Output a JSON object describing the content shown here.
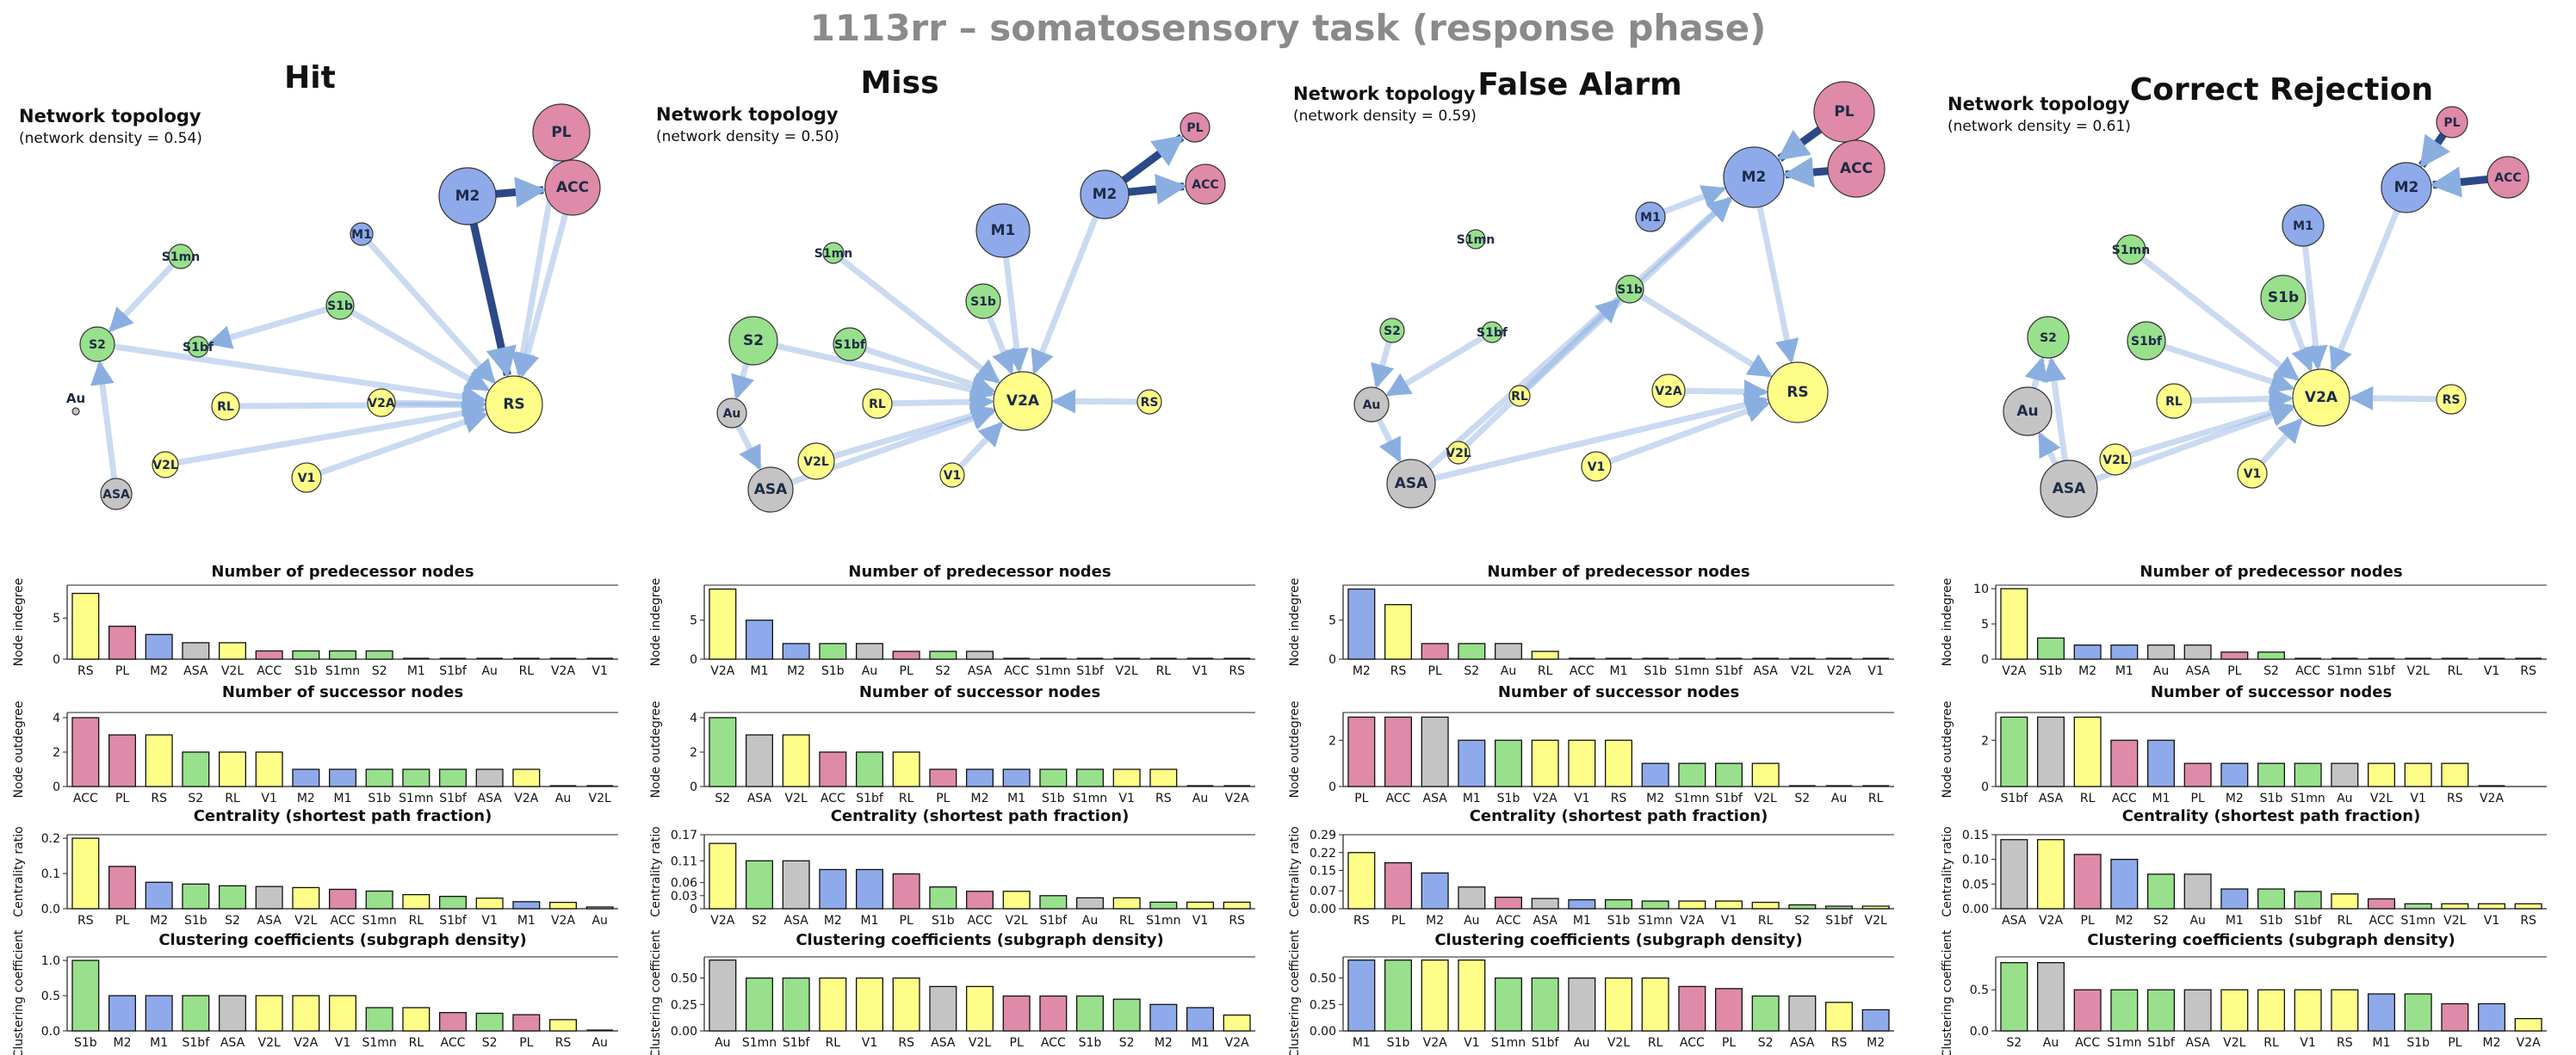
{
  "title": "1113rr – somatosensory task (response phase)",
  "colors": {
    "sensory": "#98e08c",
    "motor": "#8eaaea",
    "visual": "#fdfd88",
    "prefrontal": "#de8aa8",
    "other": "#c4c4c4",
    "edge": "#1f3f80",
    "bar_stroke": "#111111"
  },
  "node_groups": {
    "PL": "prefrontal",
    "ACC": "prefrontal",
    "M1": "motor",
    "M2": "motor",
    "S1mn": "sensory",
    "S1b": "sensory",
    "S1bf": "sensory",
    "S2": "sensory",
    "RS": "visual",
    "V2A": "visual",
    "RL": "visual",
    "V2L": "visual",
    "V1": "visual",
    "Au": "other",
    "ASA": "other"
  },
  "labels": {
    "topology": "Network topology",
    "metric_titles": [
      "Number of predecessor nodes",
      "Number of successor nodes",
      "Centrality (shortest path fraction)",
      "Clustering coefficients (subgraph density)"
    ],
    "metric_ylabels": [
      "Node indegree",
      "Node outdegree",
      "Centrality ratio",
      "Clustering coefficient"
    ]
  },
  "chart_data": [
    {
      "type": "network",
      "title": "Hit",
      "density_label": "(network density = 0.54)",
      "nodes": [
        "PL",
        "ACC",
        "M2",
        "M1",
        "S1mn",
        "S1b",
        "S1bf",
        "S2",
        "Au",
        "RL",
        "V2A",
        "RS",
        "V2L",
        "V1",
        "ASA"
      ],
      "edges": [
        [
          "M2",
          "ACC"
        ],
        [
          "M2",
          "RS"
        ],
        [
          "PL",
          "RS"
        ],
        [
          "ACC",
          "RS"
        ],
        [
          "M1",
          "RS"
        ],
        [
          "S1b",
          "RS"
        ],
        [
          "V2A",
          "RS"
        ],
        [
          "V2L",
          "RS"
        ],
        [
          "V1",
          "RS"
        ],
        [
          "RL",
          "RS"
        ],
        [
          "S1mn",
          "S2"
        ],
        [
          "S2",
          "RS"
        ],
        [
          "ASA",
          "S2"
        ],
        [
          "S1b",
          "S1bf"
        ]
      ]
    },
    {
      "type": "network",
      "title": "Miss",
      "density_label": "(network density = 0.50)",
      "nodes": [
        "PL",
        "ACC",
        "M2",
        "M1",
        "S1mn",
        "S1b",
        "S1bf",
        "S2",
        "Au",
        "RL",
        "V2A",
        "RS",
        "V2L",
        "V1",
        "ASA"
      ],
      "edges": [
        [
          "M2",
          "ACC"
        ],
        [
          "M2",
          "PL"
        ],
        [
          "M2",
          "V2A"
        ],
        [
          "M1",
          "V2A"
        ],
        [
          "S1b",
          "V2A"
        ],
        [
          "S1bf",
          "V2A"
        ],
        [
          "S1mn",
          "V2A"
        ],
        [
          "RL",
          "V2A"
        ],
        [
          "RS",
          "V2A"
        ],
        [
          "V1",
          "V2A"
        ],
        [
          "V2L",
          "V2A"
        ],
        [
          "S2",
          "Au"
        ],
        [
          "Au",
          "ASA"
        ],
        [
          "ASA",
          "V2A"
        ],
        [
          "S2",
          "V2A"
        ]
      ]
    },
    {
      "type": "network",
      "title": "False Alarm",
      "density_label": "(network density = 0.59)",
      "nodes": [
        "PL",
        "ACC",
        "M2",
        "M1",
        "S1mn",
        "S1b",
        "S1bf",
        "S2",
        "Au",
        "RL",
        "V2A",
        "RS",
        "V2L",
        "V1",
        "ASA"
      ],
      "edges": [
        [
          "ACC",
          "M2"
        ],
        [
          "PL",
          "M2"
        ],
        [
          "M2",
          "RS"
        ],
        [
          "M1",
          "M2"
        ],
        [
          "S1b",
          "RS"
        ],
        [
          "V2A",
          "RS"
        ],
        [
          "V1",
          "RS"
        ],
        [
          "ASA",
          "M2"
        ],
        [
          "ASA",
          "RS"
        ],
        [
          "Au",
          "ASA"
        ],
        [
          "V2L",
          "S1b"
        ],
        [
          "RL",
          "M2"
        ],
        [
          "S1bf",
          "Au"
        ],
        [
          "S2",
          "Au"
        ]
      ]
    },
    {
      "type": "network",
      "title": "Correct Rejection",
      "density_label": "(network density = 0.61)",
      "nodes": [
        "PL",
        "ACC",
        "M2",
        "M1",
        "S1mn",
        "S1b",
        "S1bf",
        "S2",
        "Au",
        "RL",
        "V2A",
        "RS",
        "V2L",
        "V1",
        "ASA"
      ],
      "edges": [
        [
          "ACC",
          "M2"
        ],
        [
          "PL",
          "M2"
        ],
        [
          "M2",
          "V2A"
        ],
        [
          "M1",
          "V2A"
        ],
        [
          "S1mn",
          "V2A"
        ],
        [
          "S1b",
          "V2A"
        ],
        [
          "S1bf",
          "V2A"
        ],
        [
          "RL",
          "V2A"
        ],
        [
          "RS",
          "V2A"
        ],
        [
          "V2L",
          "V2A"
        ],
        [
          "V1",
          "V2A"
        ],
        [
          "ASA",
          "V2A"
        ],
        [
          "ASA",
          "Au"
        ],
        [
          "Au",
          "S2"
        ],
        [
          "ASA",
          "S2"
        ]
      ]
    },
    {
      "type": "bar",
      "panel": "Hit",
      "metric": "Number of predecessor nodes",
      "ylabel": "Node indegree",
      "categories": [
        "RS",
        "PL",
        "M2",
        "ASA",
        "V2L",
        "ACC",
        "S1b",
        "S1mn",
        "S2",
        "M1",
        "S1bf",
        "Au",
        "RL",
        "V2A",
        "V1"
      ],
      "values": [
        8,
        4,
        3,
        2,
        2,
        1,
        1,
        1,
        1,
        0,
        0,
        0,
        0,
        0,
        0
      ],
      "yticks": [
        0,
        5
      ],
      "ylim": [
        0,
        9
      ]
    },
    {
      "type": "bar",
      "panel": "Hit",
      "metric": "Number of successor nodes",
      "ylabel": "Node outdegree",
      "categories": [
        "ACC",
        "PL",
        "RS",
        "S2",
        "RL",
        "V1",
        "M2",
        "M1",
        "S1b",
        "S1mn",
        "S1bf",
        "ASA",
        "V2A",
        "Au",
        "V2L"
      ],
      "values": [
        4,
        3,
        3,
        2,
        2,
        2,
        1,
        1,
        1,
        1,
        1,
        1,
        1,
        0,
        0
      ],
      "yticks": [
        0,
        2,
        4
      ],
      "ylim": [
        0,
        4.3
      ]
    },
    {
      "type": "bar",
      "panel": "Hit",
      "metric": "Centrality (shortest path fraction)",
      "ylabel": "Centrality ratio",
      "categories": [
        "RS",
        "PL",
        "M2",
        "S1b",
        "S2",
        "ASA",
        "V2L",
        "ACC",
        "S1mn",
        "RL",
        "S1bf",
        "V1",
        "M1",
        "V2A",
        "Au"
      ],
      "values": [
        0.2,
        0.12,
        0.075,
        0.07,
        0.065,
        0.063,
        0.06,
        0.055,
        0.05,
        0.04,
        0.035,
        0.03,
        0.02,
        0.018,
        0.005
      ],
      "yticks": [
        0,
        0.1,
        0.2
      ],
      "ytick_labels": [
        "0.0",
        "0.1",
        "0.2"
      ],
      "ylim": [
        0,
        0.21
      ]
    },
    {
      "type": "bar",
      "panel": "Hit",
      "metric": "Clustering coefficients (subgraph density)",
      "ylabel": "Clustering coefficient",
      "categories": [
        "S1b",
        "M2",
        "M1",
        "S1bf",
        "ASA",
        "V2L",
        "V2A",
        "V1",
        "S1mn",
        "RL",
        "ACC",
        "S2",
        "PL",
        "RS",
        "Au"
      ],
      "values": [
        1.0,
        0.5,
        0.5,
        0.5,
        0.5,
        0.5,
        0.5,
        0.5,
        0.33,
        0.33,
        0.26,
        0.25,
        0.23,
        0.16,
        0.0
      ],
      "yticks": [
        0,
        0.5,
        1.0
      ],
      "ytick_labels": [
        "0.0",
        "0.5",
        "1.0"
      ],
      "ylim": [
        0,
        1.05
      ]
    },
    {
      "type": "bar",
      "panel": "Miss",
      "metric": "Number of predecessor nodes",
      "ylabel": "Node indegree",
      "categories": [
        "V2A",
        "M1",
        "M2",
        "S1b",
        "Au",
        "PL",
        "S2",
        "ASA",
        "ACC",
        "S1mn",
        "S1bf",
        "V2L",
        "RL",
        "V1",
        "RS"
      ],
      "values": [
        9,
        5,
        2,
        2,
        2,
        1,
        1,
        1,
        0,
        0,
        0,
        0,
        0,
        0,
        0
      ],
      "yticks": [
        0,
        5
      ],
      "ylim": [
        0,
        9.5
      ]
    },
    {
      "type": "bar",
      "panel": "Miss",
      "metric": "Number of successor nodes",
      "ylabel": "Node outdegree",
      "categories": [
        "S2",
        "ASA",
        "V2L",
        "ACC",
        "S1bf",
        "RL",
        "PL",
        "M2",
        "M1",
        "S1b",
        "S1mn",
        "V1",
        "RS",
        "Au",
        "V2A"
      ],
      "values": [
        4,
        3,
        3,
        2,
        2,
        2,
        1,
        1,
        1,
        1,
        1,
        1,
        1,
        0,
        0
      ],
      "yticks": [
        0,
        2,
        4
      ],
      "ylim": [
        0,
        4.3
      ]
    },
    {
      "type": "bar",
      "panel": "Miss",
      "metric": "Centrality (shortest path fraction)",
      "ylabel": "Centrality ratio",
      "categories": [
        "V2A",
        "S2",
        "ASA",
        "M2",
        "M1",
        "PL",
        "S1b",
        "ACC",
        "V2L",
        "S1bf",
        "Au",
        "RL",
        "S1mn",
        "V1",
        "RS"
      ],
      "values": [
        0.15,
        0.11,
        0.11,
        0.09,
        0.09,
        0.08,
        0.05,
        0.04,
        0.04,
        0.03,
        0.025,
        0.025,
        0.015,
        0.015,
        0.015
      ],
      "yticks": [
        0,
        0.03,
        0.06,
        0.11,
        0.17
      ],
      "ytick_labels": [
        "0",
        "0.03",
        "0.06",
        "0.11",
        "0.17"
      ],
      "ylim": [
        0,
        0.17
      ]
    },
    {
      "type": "bar",
      "panel": "Miss",
      "metric": "Clustering coefficients (subgraph density)",
      "ylabel": "Clustering coefficient",
      "categories": [
        "Au",
        "S1mn",
        "S1bf",
        "RL",
        "V1",
        "RS",
        "ASA",
        "V2L",
        "PL",
        "ACC",
        "S1b",
        "S2",
        "M2",
        "M1",
        "V2A"
      ],
      "values": [
        0.67,
        0.5,
        0.5,
        0.5,
        0.5,
        0.5,
        0.42,
        0.42,
        0.33,
        0.33,
        0.33,
        0.3,
        0.25,
        0.22,
        0.15
      ],
      "yticks": [
        0,
        0.25,
        0.5
      ],
      "ytick_labels": [
        "0.00",
        "0.25",
        "0.50"
      ],
      "ylim": [
        0,
        0.7
      ]
    },
    {
      "type": "bar",
      "panel": "False Alarm",
      "metric": "Number of predecessor nodes",
      "ylabel": "Node indegree",
      "categories": [
        "M2",
        "RS",
        "PL",
        "S2",
        "Au",
        "RL",
        "ACC",
        "M1",
        "S1b",
        "S1mn",
        "S1bf",
        "ASA",
        "V2L",
        "V2A",
        "V1"
      ],
      "values": [
        9,
        7,
        2,
        2,
        2,
        1,
        0,
        0,
        0,
        0,
        0,
        0,
        0,
        0,
        0
      ],
      "yticks": [
        0,
        5
      ],
      "ylim": [
        0,
        9.5
      ]
    },
    {
      "type": "bar",
      "panel": "False Alarm",
      "metric": "Number of successor nodes",
      "ylabel": "Node outdegree",
      "categories": [
        "PL",
        "ACC",
        "ASA",
        "M1",
        "S1b",
        "V2A",
        "V1",
        "RS",
        "M2",
        "S1mn",
        "S1bf",
        "V2L",
        "S2",
        "Au",
        "RL"
      ],
      "values": [
        3,
        3,
        3,
        2,
        2,
        2,
        2,
        2,
        1,
        1,
        1,
        1,
        0,
        0,
        0
      ],
      "yticks": [
        0,
        2
      ],
      "ylim": [
        0,
        3.2
      ]
    },
    {
      "type": "bar",
      "panel": "False Alarm",
      "metric": "Centrality (shortest path fraction)",
      "ylabel": "Centrality ratio",
      "categories": [
        "RS",
        "PL",
        "M2",
        "Au",
        "ACC",
        "ASA",
        "M1",
        "S1b",
        "S1mn",
        "V2A",
        "V1",
        "RL",
        "S2",
        "S1bf",
        "V2L"
      ],
      "values": [
        0.22,
        0.18,
        0.14,
        0.085,
        0.045,
        0.04,
        0.035,
        0.035,
        0.03,
        0.03,
        0.03,
        0.025,
        0.015,
        0.01,
        0.01
      ],
      "yticks": [
        0,
        0.07,
        0.15,
        0.22,
        0.29
      ],
      "ytick_labels": [
        "0.00",
        "0.07",
        "0.15",
        "0.22",
        "0.29"
      ],
      "ylim": [
        0,
        0.29
      ]
    },
    {
      "type": "bar",
      "panel": "False Alarm",
      "metric": "Clustering coefficients (subgraph density)",
      "ylabel": "Clustering coefficient",
      "categories": [
        "M1",
        "S1b",
        "V2A",
        "V1",
        "S1mn",
        "S1bf",
        "Au",
        "V2L",
        "RL",
        "ACC",
        "PL",
        "S2",
        "ASA",
        "RS",
        "M2"
      ],
      "values": [
        0.67,
        0.67,
        0.67,
        0.67,
        0.5,
        0.5,
        0.5,
        0.5,
        0.5,
        0.42,
        0.4,
        0.33,
        0.33,
        0.27,
        0.2
      ],
      "yticks": [
        0,
        0.25,
        0.5
      ],
      "ytick_labels": [
        "0.00",
        "0.25",
        "0.50"
      ],
      "ylim": [
        0,
        0.7
      ]
    },
    {
      "type": "bar",
      "panel": "Correct Rejection",
      "metric": "Number of predecessor nodes",
      "ylabel": "Node indegree",
      "categories": [
        "V2A",
        "S1b",
        "M2",
        "M1",
        "Au",
        "ASA",
        "PL",
        "S2",
        "ACC",
        "S1mn",
        "S1bf",
        "V2L",
        "RL",
        "V1",
        "RS"
      ],
      "values": [
        10,
        3,
        2,
        2,
        2,
        2,
        1,
        1,
        0,
        0,
        0,
        0,
        0,
        0,
        0
      ],
      "yticks": [
        0,
        5,
        10
      ],
      "ylim": [
        0,
        10.5
      ]
    },
    {
      "type": "bar",
      "panel": "Correct Rejection",
      "metric": "Number of successor nodes",
      "ylabel": "Node outdegree",
      "categories": [
        "S1bf",
        "ASA",
        "RL",
        "ACC",
        "M1",
        "PL",
        "M2",
        "S1b",
        "S1mn",
        "Au",
        "V2L",
        "V1",
        "RS",
        "V2A"
      ],
      "values": [
        3,
        3,
        3,
        2,
        2,
        1,
        1,
        1,
        1,
        1,
        1,
        1,
        1,
        0
      ],
      "yticks": [
        0,
        2
      ],
      "ylim": [
        0,
        3.2
      ]
    },
    {
      "type": "bar",
      "panel": "Correct Rejection",
      "metric": "Centrality (shortest path fraction)",
      "ylabel": "Centrality ratio",
      "categories": [
        "ASA",
        "V2A",
        "PL",
        "M2",
        "S2",
        "Au",
        "M1",
        "S1b",
        "S1bf",
        "RL",
        "ACC",
        "S1mn",
        "V2L",
        "V1",
        "RS"
      ],
      "values": [
        0.14,
        0.14,
        0.11,
        0.1,
        0.07,
        0.07,
        0.04,
        0.04,
        0.035,
        0.03,
        0.02,
        0.01,
        0.01,
        0.01,
        0.01
      ],
      "yticks": [
        0,
        0.05,
        0.1,
        0.15
      ],
      "ytick_labels": [
        "0.00",
        "0.05",
        "0.10",
        "0.15"
      ],
      "ylim": [
        0,
        0.15
      ]
    },
    {
      "type": "bar",
      "panel": "Correct Rejection",
      "metric": "Clustering coefficients (subgraph density)",
      "ylabel": "Clustering coefficient",
      "categories": [
        "S2",
        "Au",
        "ACC",
        "S1mn",
        "S1bf",
        "ASA",
        "V2L",
        "RL",
        "V1",
        "RS",
        "M1",
        "S1b",
        "PL",
        "M2",
        "V2A"
      ],
      "values": [
        0.83,
        0.83,
        0.5,
        0.5,
        0.5,
        0.5,
        0.5,
        0.5,
        0.5,
        0.5,
        0.45,
        0.45,
        0.33,
        0.33,
        0.15
      ],
      "yticks": [
        0,
        0.5
      ],
      "ytick_labels": [
        "0.0",
        "0.5"
      ],
      "ylim": [
        0,
        0.9
      ]
    }
  ]
}
